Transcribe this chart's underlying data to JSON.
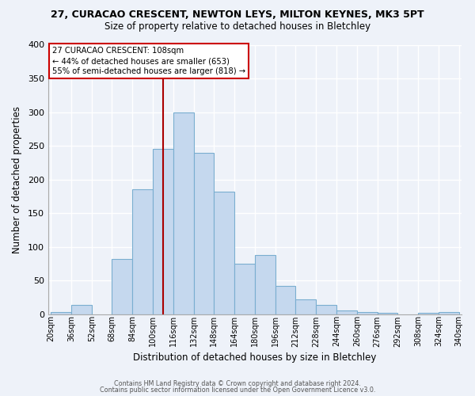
{
  "title": "27, CURACAO CRESCENT, NEWTON LEYS, MILTON KEYNES, MK3 5PT",
  "subtitle": "Size of property relative to detached houses in Bletchley",
  "xlabel": "Distribution of detached houses by size in Bletchley",
  "ylabel": "Number of detached properties",
  "bar_color": "#c5d8ee",
  "bar_edge_color": "#7aaed0",
  "background_color": "#eef2f9",
  "grid_color": "#ffffff",
  "annotation_line_color": "#aa0000",
  "annotation_text_line1": "27 CURACAO CRESCENT: 108sqm",
  "annotation_text_line2": "← 44% of detached houses are smaller (653)",
  "annotation_text_line3": "55% of semi-detached houses are larger (818) →",
  "annotation_box_color": "white",
  "annotation_box_edge": "#cc0000",
  "bin_edges": [
    20,
    36,
    52,
    68,
    84,
    100,
    116,
    132,
    148,
    164,
    180,
    196,
    212,
    228,
    244,
    260,
    276,
    292,
    308,
    324,
    340
  ],
  "bin_labels": [
    "20sqm",
    "36sqm",
    "52sqm",
    "68sqm",
    "84sqm",
    "100sqm",
    "116sqm",
    "132sqm",
    "148sqm",
    "164sqm",
    "180sqm",
    "196sqm",
    "212sqm",
    "228sqm",
    "244sqm",
    "260sqm",
    "276sqm",
    "292sqm",
    "308sqm",
    "324sqm",
    "340sqm"
  ],
  "counts": [
    3,
    14,
    0,
    82,
    185,
    245,
    300,
    240,
    182,
    75,
    88,
    42,
    22,
    14,
    6,
    3,
    2,
    0,
    2,
    3
  ],
  "ylim": [
    0,
    400
  ],
  "yticks": [
    0,
    50,
    100,
    150,
    200,
    250,
    300,
    350,
    400
  ],
  "vline_x": 108,
  "footer_line1": "Contains HM Land Registry data © Crown copyright and database right 2024.",
  "footer_line2": "Contains public sector information licensed under the Open Government Licence v3.0."
}
